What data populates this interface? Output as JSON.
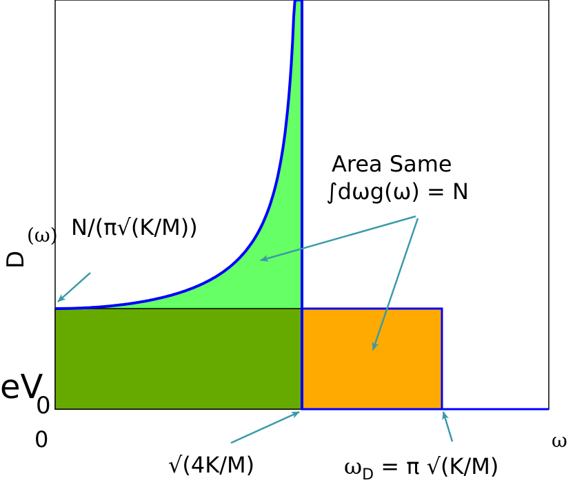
{
  "labels": {
    "density_left": "D",
    "density_omega": "(ω)",
    "normalization": "N/(π√(K/M))",
    "area_title": "Area Same",
    "area_integral": "∫dωg(ω) = N",
    "dos_partial": "eV",
    "dos_sub": "0",
    "origin": "0",
    "axis_omega": "ω",
    "peak_frequency": "√(4K/M)",
    "debye_lhs": "ω",
    "debye_sub": "D",
    "debye_rhs": " = π √(K/M)"
  },
  "colors": {
    "curve_fill": "#66ff66",
    "low_box": "#66aa00",
    "high_box": "#ffaa00",
    "curve_line": "#0000ff",
    "arrow": "#3a9aa8",
    "frame": "#000000"
  },
  "chart_data": {
    "type": "area",
    "series_dos": {
      "omega_over_omega_max": [
        0,
        0.2,
        0.4,
        0.6,
        0.7,
        0.8,
        0.9,
        0.95,
        0.98,
        0.995
      ],
      "g_over_g0": [
        1,
        1.02,
        1.09,
        1.25,
        1.4,
        1.67,
        2.29,
        3.2,
        5.03,
        10.0
      ]
    },
    "series_debye": {
      "omega_over_omega_max": [
        0,
        1,
        1.46
      ],
      "g_over_g0": [
        1,
        1,
        0
      ]
    }
  }
}
